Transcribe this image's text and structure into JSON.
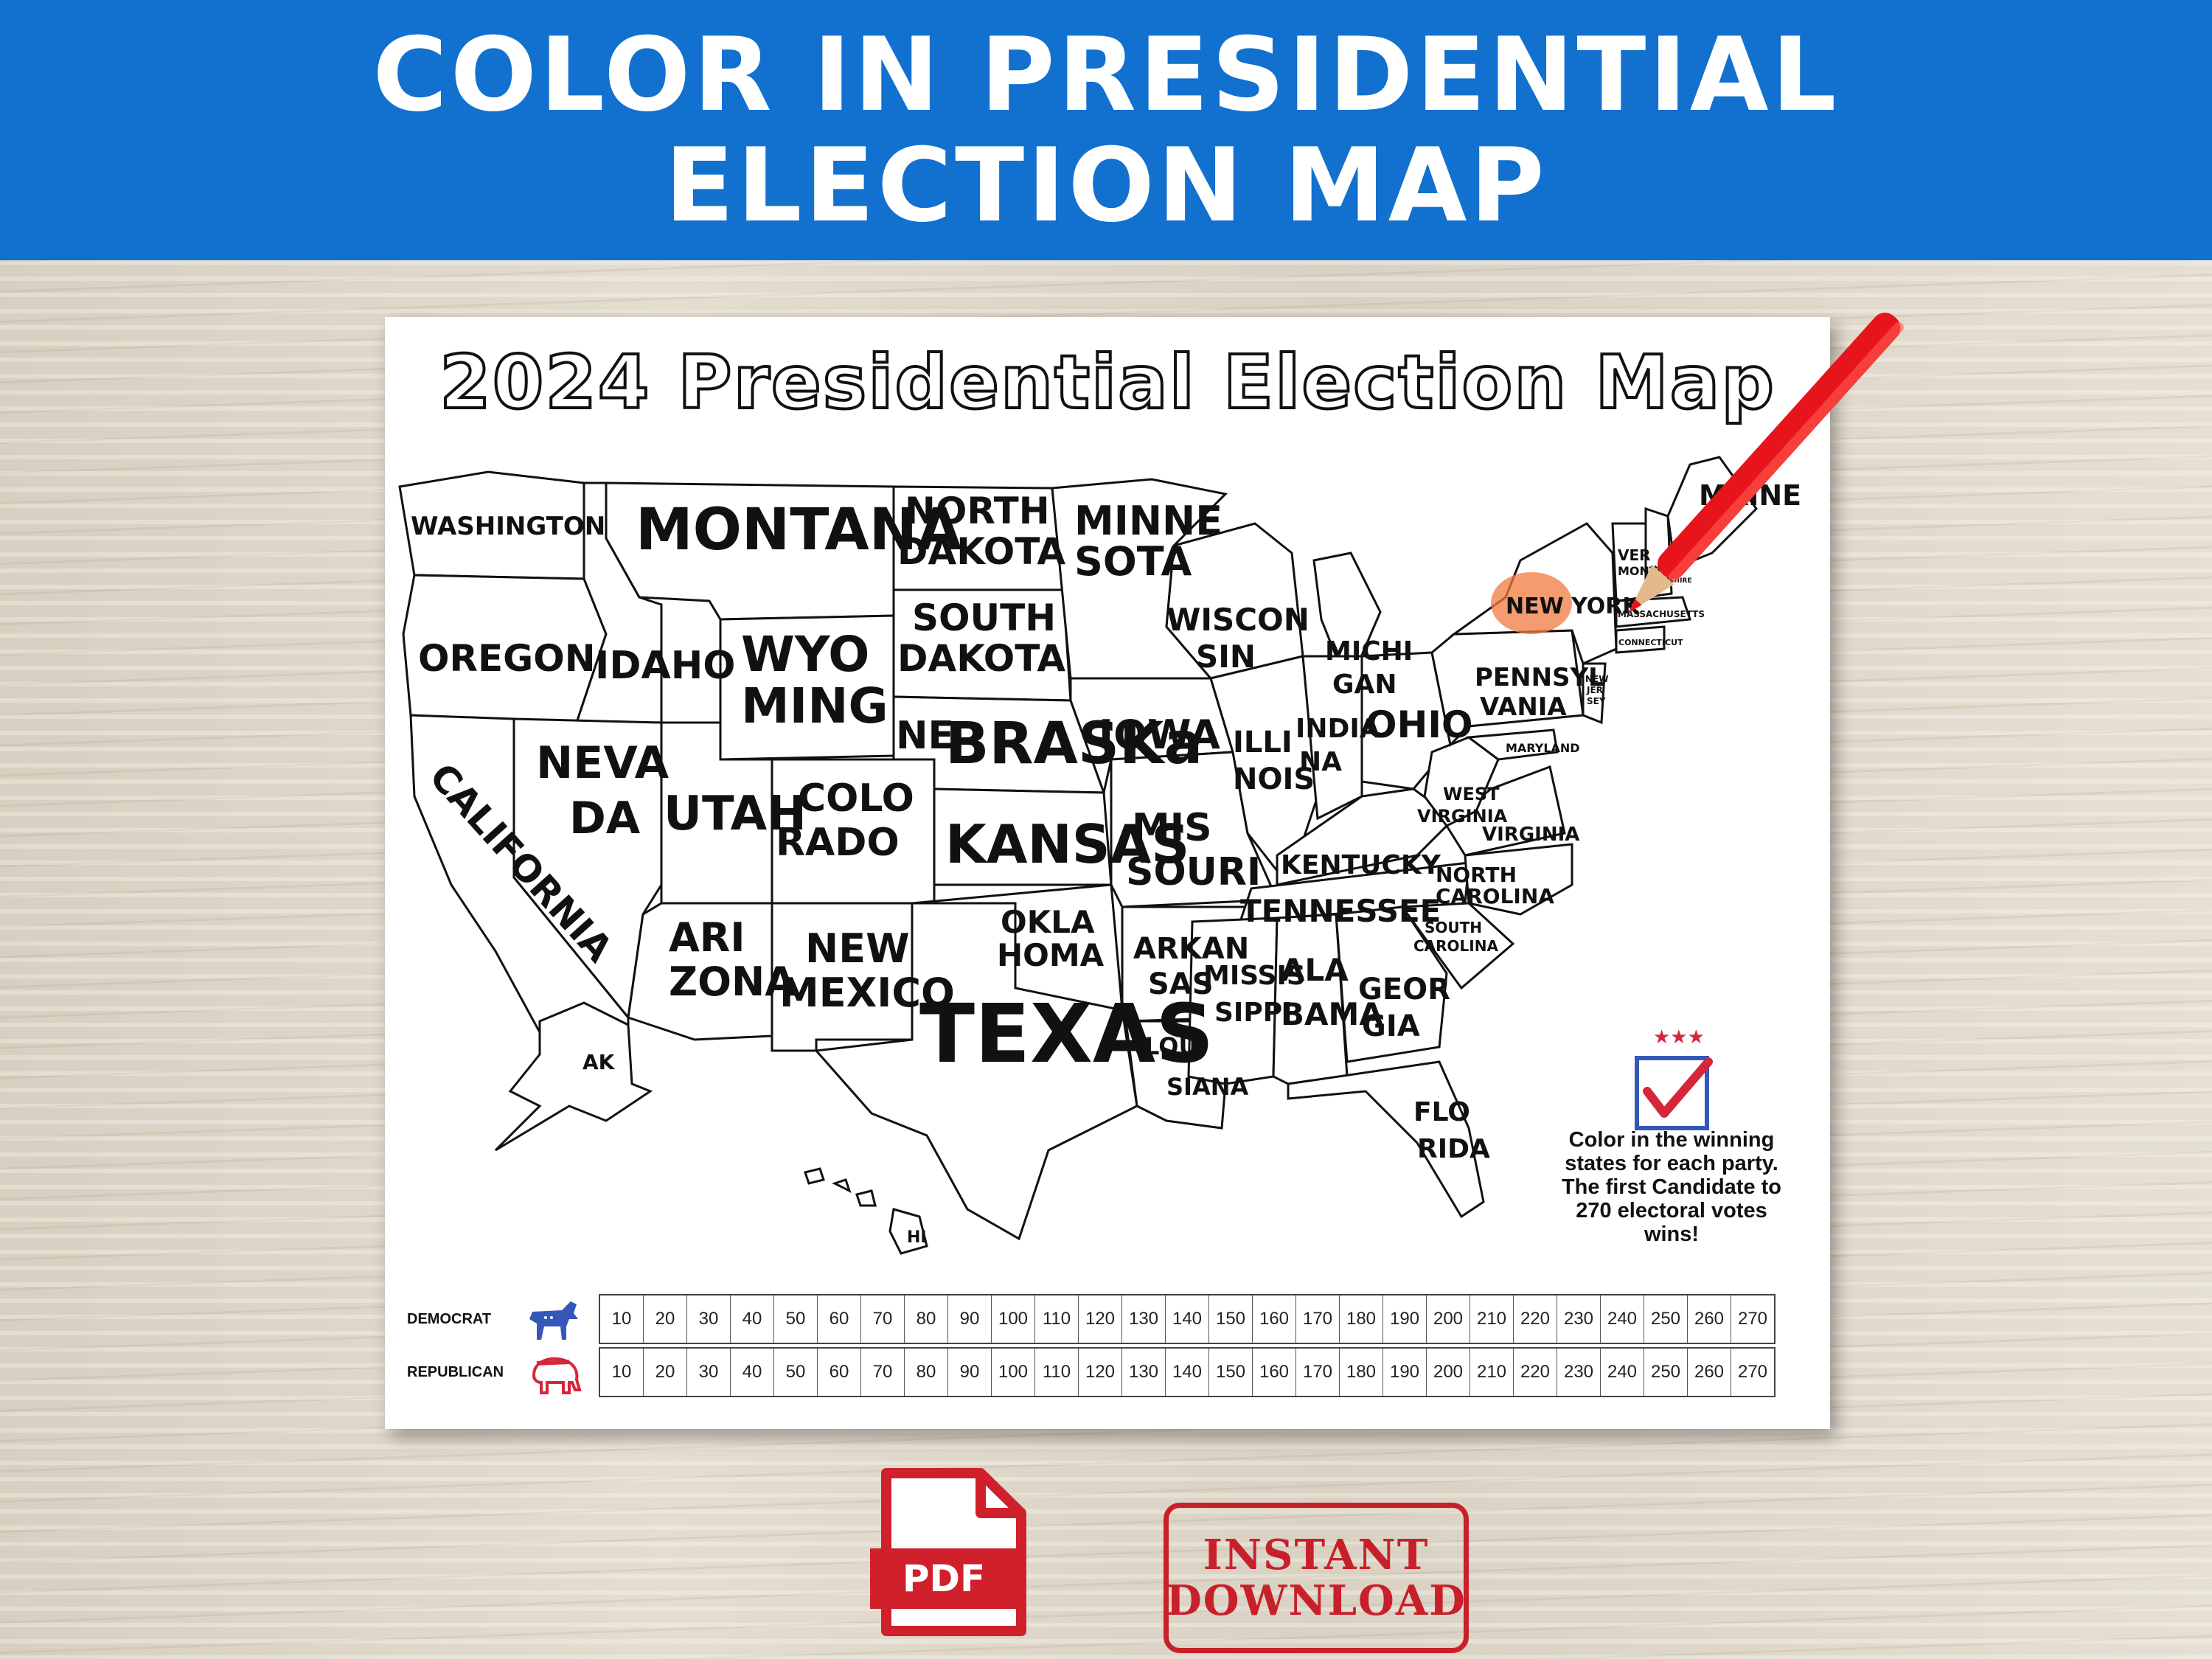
{
  "banner": {
    "line1": "COLOR IN PRESIDENTIAL",
    "line2": "ELECTION MAP"
  },
  "sheet": {
    "title": "2024 Presidential Election Map",
    "instructions": "Color in the winning states for each party. The first Candidate to 270 electoral votes wins!"
  },
  "states": {
    "washington": "WASHINGTON",
    "oregon": "OREGON",
    "california": "CALIFORNIA",
    "idaho": "IDAHO",
    "nevada_1": "NEVA",
    "nevada_2": "DA",
    "montana": "MONTANA",
    "wyoming_1": "WYO",
    "wyoming_2": "MING",
    "utah": "UTAH",
    "arizona_1": "ARI",
    "arizona_2": "ZONA",
    "colorado_1": "COLO",
    "colorado_2": "RADO",
    "new_mexico_1": "NEW",
    "new_mexico_2": "MEXICO",
    "north_dakota_1": "NORTH",
    "north_dakota_2": "DAKOTA",
    "south_dakota_1": "SOUTH",
    "south_dakota_2": "DAKOTA",
    "nebraska_1": "NE",
    "nebraska_2": "BRASKa",
    "kansas": "KANSAS",
    "oklahoma_1": "OKLA",
    "oklahoma_2": "HOMA",
    "texas": "TEXAS",
    "minnesota_1": "MINNE",
    "minnesota_2": "SOTA",
    "iowa": "IOWA",
    "missouri_1": "MIS",
    "missouri_2": "SOURI",
    "arkansas_1": "ARKAN",
    "arkansas_2": "SAS",
    "louisiana_1": "LOUI",
    "louisiana_2": "SIANA",
    "wisconsin_1": "WISCON",
    "wisconsin_2": "SIN",
    "illinois_1": "ILLI",
    "illinois_2": "NOIS",
    "michigan_1": "MICHI",
    "michigan_2": "GAN",
    "indiana_1": "INDIA",
    "indiana_2": "NA",
    "ohio": "OHIO",
    "kentucky": "KENTUCKY",
    "tennessee": "TENNESSEE",
    "mississippi_1": "MISSIS",
    "mississippi_2": "SIPPI",
    "alabama_1": "ALA",
    "alabama_2": "BAMA",
    "georgia_1": "GEOR",
    "georgia_2": "GIA",
    "florida_1": "FLO",
    "florida_2": "RIDA",
    "south_carolina_1": "SOUTH",
    "south_carolina_2": "CAROLINA",
    "north_carolina_1": "NORTH",
    "north_carolina_2": "CAROLINA",
    "virginia": "VIRGINIA",
    "west_virginia_1": "WEST",
    "west_virginia_2": "VIRGINIA",
    "maryland": "MARYLAND",
    "pennsylvania_1": "PENNSYL",
    "pennsylvania_2": "VANIA",
    "new_york": "NEW YORK",
    "new_jersey_1": "NEW",
    "new_jersey_2": "JER",
    "new_jersey_3": "SEY",
    "connecticut": "CONNECTICUT",
    "massachusetts": "MASSACHUSETTS",
    "vermont_1": "VER",
    "vermont_2": "MONT",
    "new_hampshire_1": "NEW",
    "new_hampshire_2": "HAMPSHIRE",
    "maine": "MAINE",
    "alaska": "AK",
    "hawaii": "HI"
  },
  "tracker": {
    "democrat_label": "DEMOCRAT",
    "republican_label": "REPUBLICAN",
    "votes": [
      "10",
      "20",
      "30",
      "40",
      "50",
      "60",
      "70",
      "80",
      "90",
      "100",
      "110",
      "120",
      "130",
      "140",
      "150",
      "160",
      "170",
      "180",
      "190",
      "200",
      "210",
      "220",
      "230",
      "240",
      "250",
      "260",
      "270"
    ]
  },
  "badges": {
    "pdf": "PDF",
    "instant_1": "INSTANT",
    "instant_2": "DOWNLOAD"
  },
  "colors": {
    "banner": "#1270cf",
    "pencil": "#e8141c",
    "stamp": "#c8202a",
    "democrat": "#3557b8",
    "republican": "#d6263a"
  },
  "icons": [
    "checkbox-ballot-icon",
    "donkey-icon",
    "elephant-icon",
    "pdf-file-icon",
    "pencil-icon"
  ]
}
